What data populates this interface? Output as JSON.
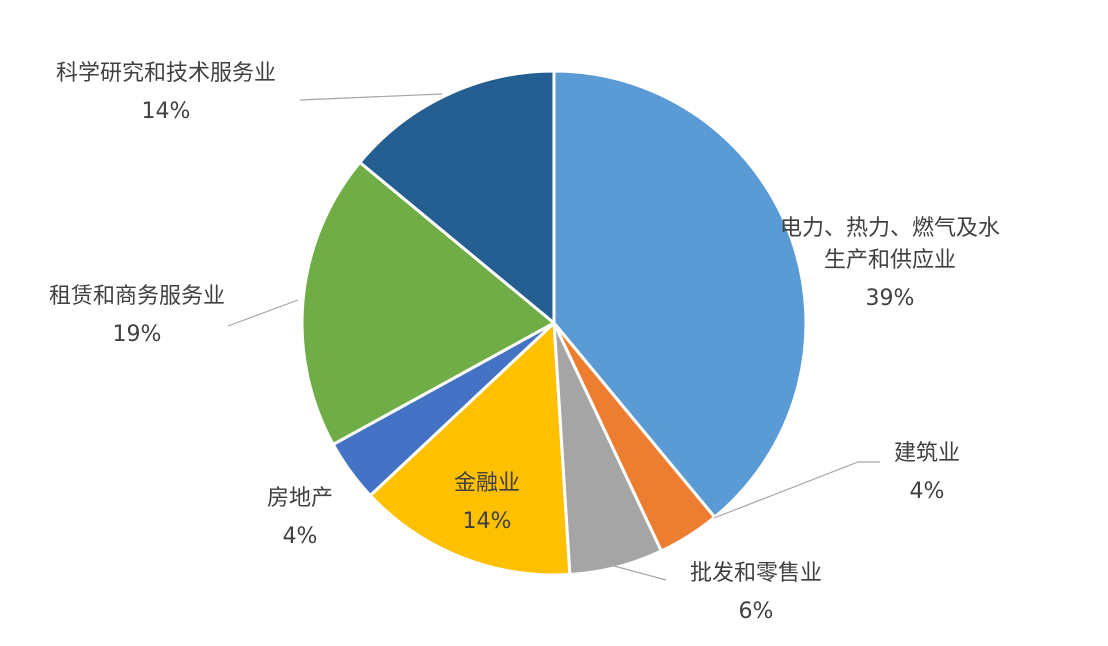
{
  "chart_data": {
    "type": "pie",
    "title": "",
    "start_angle_deg": 0,
    "direction": "clockwise",
    "slice_border_color": "#ffffff",
    "leader_line_color": "#a6a6a6",
    "label_color": "#404040",
    "slices": [
      {
        "name": "电力、热力、燃气及水生产和供应业",
        "label_lines": [
          "电力、热力、燃气及水",
          "生产和供应业"
        ],
        "value": 39,
        "value_label": "39%",
        "color": "#5b9bd5"
      },
      {
        "name": "建筑业",
        "label_lines": [
          "建筑业"
        ],
        "value": 4,
        "value_label": "4%",
        "color": "#ed7d31"
      },
      {
        "name": "批发和零售业",
        "label_lines": [
          "批发和零售业"
        ],
        "value": 6,
        "value_label": "6%",
        "color": "#a5a5a5"
      },
      {
        "name": "金融业",
        "label_lines": [
          "金融业"
        ],
        "value": 14,
        "value_label": "14%",
        "color": "#ffc000"
      },
      {
        "name": "房地产",
        "label_lines": [
          "房地产"
        ],
        "value": 4,
        "value_label": "4%",
        "color": "#4472c4"
      },
      {
        "name": "租赁和商务服务业",
        "label_lines": [
          "租赁和商务服务业"
        ],
        "value": 19,
        "value_label": "19%",
        "color": "#70ad47"
      },
      {
        "name": "科学研究和技术服务业",
        "label_lines": [
          "科学研究和技术服务业"
        ],
        "value": 14,
        "value_label": "14%",
        "color": "#255e91"
      }
    ]
  }
}
